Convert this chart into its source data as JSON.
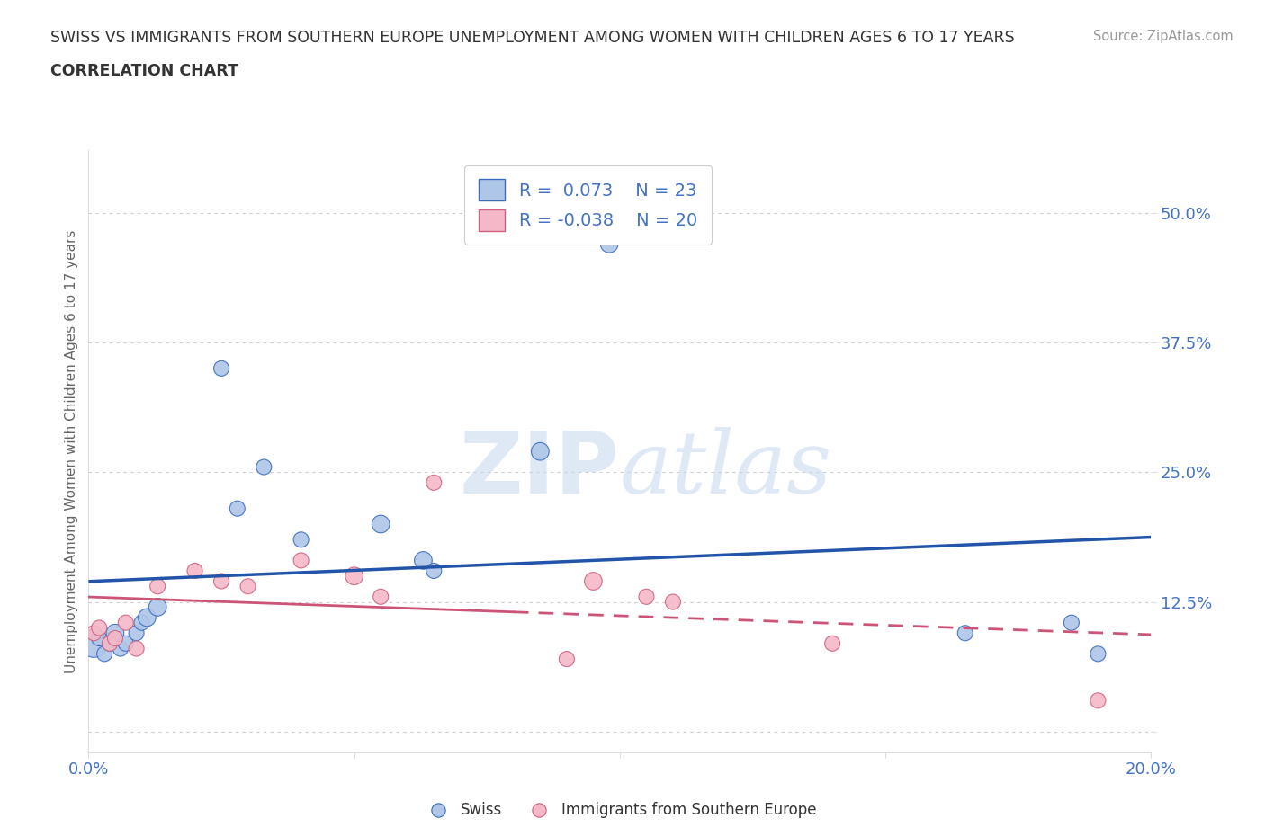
{
  "title_line1": "SWISS VS IMMIGRANTS FROM SOUTHERN EUROPE UNEMPLOYMENT AMONG WOMEN WITH CHILDREN AGES 6 TO 17 YEARS",
  "title_line2": "CORRELATION CHART",
  "source": "Source: ZipAtlas.com",
  "ylabel": "Unemployment Among Women with Children Ages 6 to 17 years",
  "xlim": [
    0.0,
    0.2
  ],
  "ylim": [
    -0.02,
    0.56
  ],
  "yticks": [
    0.0,
    0.125,
    0.25,
    0.375,
    0.5
  ],
  "ytick_labels": [
    "",
    "12.5%",
    "25.0%",
    "37.5%",
    "50.0%"
  ],
  "xticks": [
    0.0,
    0.05,
    0.1,
    0.15,
    0.2
  ],
  "xtick_labels": [
    "0.0%",
    "",
    "",
    "",
    "20.0%"
  ],
  "watermark": "ZIPatlas",
  "swiss_R": 0.073,
  "swiss_N": 23,
  "immigrant_R": -0.038,
  "immigrant_N": 20,
  "swiss_color": "#aec6e8",
  "swiss_edge_color": "#3a6bbf",
  "swiss_line_color": "#2255aa",
  "immigrant_color": "#f4b8c8",
  "immigrant_edge_color": "#d06080",
  "immigrant_line_color": "#cc5577",
  "swiss_x": [
    0.001,
    0.002,
    0.003,
    0.004,
    0.005,
    0.006,
    0.007,
    0.009,
    0.01,
    0.011,
    0.013,
    0.025,
    0.028,
    0.033,
    0.04,
    0.055,
    0.063,
    0.065,
    0.085,
    0.098,
    0.165,
    0.185,
    0.19
  ],
  "swiss_y": [
    0.085,
    0.09,
    0.075,
    0.085,
    0.095,
    0.08,
    0.085,
    0.095,
    0.105,
    0.11,
    0.12,
    0.35,
    0.215,
    0.255,
    0.185,
    0.2,
    0.165,
    0.155,
    0.27,
    0.47,
    0.095,
    0.105,
    0.075
  ],
  "swiss_size": [
    500,
    150,
    150,
    150,
    200,
    150,
    150,
    150,
    150,
    200,
    200,
    150,
    150,
    150,
    150,
    200,
    200,
    150,
    200,
    200,
    150,
    150,
    150
  ],
  "immigrant_x": [
    0.001,
    0.002,
    0.004,
    0.005,
    0.007,
    0.009,
    0.013,
    0.02,
    0.025,
    0.03,
    0.04,
    0.05,
    0.055,
    0.065,
    0.09,
    0.095,
    0.105,
    0.11,
    0.14,
    0.19
  ],
  "immigrant_y": [
    0.095,
    0.1,
    0.085,
    0.09,
    0.105,
    0.08,
    0.14,
    0.155,
    0.145,
    0.14,
    0.165,
    0.15,
    0.13,
    0.24,
    0.07,
    0.145,
    0.13,
    0.125,
    0.085,
    0.03
  ],
  "immigrant_size": [
    150,
    150,
    150,
    150,
    150,
    150,
    150,
    150,
    150,
    150,
    150,
    200,
    150,
    150,
    150,
    200,
    150,
    150,
    150,
    150
  ],
  "grid_color": "#cccccc",
  "background_color": "#ffffff",
  "title_color": "#333333",
  "axis_label_color": "#666666",
  "tick_color": "#4472c4"
}
